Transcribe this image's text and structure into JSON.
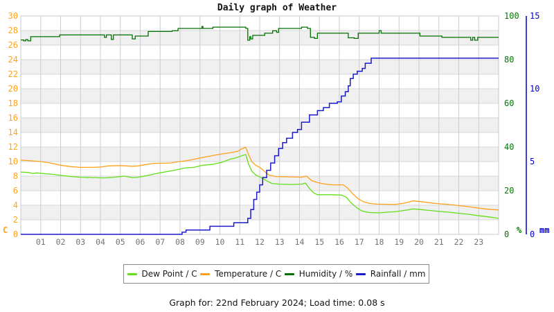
{
  "title": "Daily graph of Weather",
  "footer": "Graph for: 22nd February 2024; Load time: 0.08 s",
  "legend": {
    "items": [
      {
        "label": "Dew Point / C",
        "color": "#62df17"
      },
      {
        "label": "Temperature / C",
        "color": "#ffa019"
      },
      {
        "label": "Humidity / %",
        "color": "#006f00"
      },
      {
        "label": "Rainfall / mm",
        "color": "#1a1acd"
      }
    ]
  },
  "chart_data": {
    "type": "line",
    "title": "Daily graph of Weather",
    "background_bands": {
      "color": "#f0f0f0",
      "value_ranges": [
        [
          2,
          4
        ],
        [
          6,
          8
        ],
        [
          10,
          12
        ],
        [
          14,
          16
        ],
        [
          18,
          20
        ],
        [
          22,
          24
        ],
        [
          26,
          28
        ]
      ]
    },
    "grid": {
      "vertical_color": "#cccccc",
      "horizontal_color": "#d6d6d6",
      "border_color": "#c8c8c8"
    },
    "axes": {
      "left": {
        "unit": "C",
        "color": "#ffa21c",
        "min": 0,
        "max": 30,
        "step": 2,
        "ticks": [
          0,
          2,
          4,
          6,
          8,
          10,
          12,
          14,
          16,
          18,
          20,
          22,
          24,
          26,
          28,
          30
        ]
      },
      "right_pct": {
        "unit": "%",
        "color": "#007700",
        "min": 0,
        "max": 100,
        "step": 20,
        "ticks": [
          0,
          20,
          40,
          60,
          80,
          100
        ]
      },
      "right_mm": {
        "unit": "mm",
        "color": "#0000cc",
        "min": 0,
        "max": 15,
        "step": 5,
        "ticks": [
          0,
          5,
          10,
          15
        ]
      },
      "x": {
        "color": "#737373",
        "min_hour": 0,
        "max_hour": 24,
        "tick_labels": [
          "01",
          "02",
          "03",
          "04",
          "05",
          "06",
          "07",
          "08",
          "09",
          "10",
          "11",
          "12",
          "13",
          "14",
          "15",
          "16",
          "17",
          "18",
          "19",
          "20",
          "21",
          "22",
          "23"
        ]
      }
    },
    "series": [
      {
        "name": "Dew Point / C",
        "axis": "left",
        "color": "#62df17",
        "width": 1.3,
        "interp": "linear",
        "points": [
          [
            0,
            8.55
          ],
          [
            0.4,
            8.5
          ],
          [
            0.6,
            8.35
          ],
          [
            0.8,
            8.45
          ],
          [
            1.1,
            8.35
          ],
          [
            1.6,
            8.25
          ],
          [
            2,
            8.1
          ],
          [
            2.5,
            7.95
          ],
          [
            3,
            7.85
          ],
          [
            3.6,
            7.8
          ],
          [
            4.2,
            7.75
          ],
          [
            4.7,
            7.85
          ],
          [
            5.2,
            8.0
          ],
          [
            5.6,
            7.8
          ],
          [
            5.9,
            7.85
          ],
          [
            6.4,
            8.1
          ],
          [
            6.9,
            8.4
          ],
          [
            7.3,
            8.6
          ],
          [
            7.8,
            8.85
          ],
          [
            8.2,
            9.1
          ],
          [
            8.7,
            9.2
          ],
          [
            9.15,
            9.5
          ],
          [
            9.6,
            9.6
          ],
          [
            10.1,
            9.9
          ],
          [
            10.5,
            10.3
          ],
          [
            10.8,
            10.5
          ],
          [
            11.1,
            10.8
          ],
          [
            11.3,
            10.95
          ],
          [
            11.45,
            9.6
          ],
          [
            11.6,
            8.7
          ],
          [
            11.8,
            8.15
          ],
          [
            12.1,
            7.75
          ],
          [
            12.35,
            7.35
          ],
          [
            12.6,
            7.0
          ],
          [
            13,
            6.9
          ],
          [
            13.6,
            6.85
          ],
          [
            14.1,
            6.9
          ],
          [
            14.3,
            7.05
          ],
          [
            14.5,
            6.3
          ],
          [
            14.7,
            5.7
          ],
          [
            14.9,
            5.45
          ],
          [
            15.6,
            5.45
          ],
          [
            16.1,
            5.4
          ],
          [
            16.35,
            5.1
          ],
          [
            16.6,
            4.3
          ],
          [
            16.9,
            3.6
          ],
          [
            17.15,
            3.2
          ],
          [
            17.5,
            3.0
          ],
          [
            18,
            2.95
          ],
          [
            18.4,
            3.05
          ],
          [
            18.8,
            3.1
          ],
          [
            19.3,
            3.3
          ],
          [
            19.7,
            3.5
          ],
          [
            20.1,
            3.4
          ],
          [
            20.5,
            3.3
          ],
          [
            21,
            3.15
          ],
          [
            21.5,
            3.05
          ],
          [
            22,
            2.9
          ],
          [
            22.5,
            2.75
          ],
          [
            23,
            2.55
          ],
          [
            23.5,
            2.4
          ],
          [
            24,
            2.2
          ]
        ]
      },
      {
        "name": "Temperature / C",
        "axis": "left",
        "color": "#ffa019",
        "width": 1.3,
        "interp": "linear",
        "points": [
          [
            0,
            10.2
          ],
          [
            0.5,
            10.1
          ],
          [
            1,
            10.0
          ],
          [
            1.5,
            9.8
          ],
          [
            2,
            9.5
          ],
          [
            2.5,
            9.3
          ],
          [
            3,
            9.2
          ],
          [
            3.6,
            9.2
          ],
          [
            4,
            9.25
          ],
          [
            4.4,
            9.4
          ],
          [
            5,
            9.45
          ],
          [
            5.6,
            9.35
          ],
          [
            5.9,
            9.4
          ],
          [
            6.3,
            9.6
          ],
          [
            6.7,
            9.75
          ],
          [
            7.5,
            9.8
          ],
          [
            8,
            10.0
          ],
          [
            8.3,
            10.1
          ],
          [
            8.7,
            10.3
          ],
          [
            9,
            10.5
          ],
          [
            9.5,
            10.75
          ],
          [
            10,
            11.0
          ],
          [
            10.5,
            11.2
          ],
          [
            10.9,
            11.4
          ],
          [
            11.1,
            11.75
          ],
          [
            11.3,
            11.95
          ],
          [
            11.45,
            10.9
          ],
          [
            11.6,
            10.0
          ],
          [
            11.8,
            9.5
          ],
          [
            12,
            9.2
          ],
          [
            12.1,
            9.0
          ],
          [
            12.3,
            8.5
          ],
          [
            12.5,
            8.1
          ],
          [
            12.8,
            7.95
          ],
          [
            13.5,
            7.9
          ],
          [
            14.1,
            7.85
          ],
          [
            14.35,
            8.0
          ],
          [
            14.6,
            7.4
          ],
          [
            14.9,
            7.1
          ],
          [
            15.3,
            6.9
          ],
          [
            15.7,
            6.8
          ],
          [
            16.2,
            6.8
          ],
          [
            16.4,
            6.4
          ],
          [
            16.7,
            5.5
          ],
          [
            16.95,
            4.9
          ],
          [
            17.2,
            4.5
          ],
          [
            17.5,
            4.25
          ],
          [
            17.9,
            4.15
          ],
          [
            18.8,
            4.1
          ],
          [
            19.3,
            4.3
          ],
          [
            19.7,
            4.6
          ],
          [
            20.1,
            4.5
          ],
          [
            20.5,
            4.35
          ],
          [
            21,
            4.2
          ],
          [
            21.5,
            4.1
          ],
          [
            22,
            3.95
          ],
          [
            22.5,
            3.8
          ],
          [
            23,
            3.6
          ],
          [
            23.5,
            3.45
          ],
          [
            24,
            3.35
          ]
        ]
      },
      {
        "name": "Humidity / %",
        "axis": "right_pct",
        "color": "#006f00",
        "width": 1.3,
        "interp": "step",
        "points": [
          [
            0,
            89.0
          ],
          [
            0.15,
            88.6
          ],
          [
            0.25,
            89.2
          ],
          [
            0.35,
            88.6
          ],
          [
            0.5,
            90.5
          ],
          [
            1.85,
            90.5
          ],
          [
            1.95,
            91.3
          ],
          [
            4.15,
            91.3
          ],
          [
            4.2,
            90.2
          ],
          [
            4.3,
            91.3
          ],
          [
            4.55,
            89.2
          ],
          [
            4.65,
            91.3
          ],
          [
            5.5,
            91.3
          ],
          [
            5.6,
            89.5
          ],
          [
            5.75,
            90.8
          ],
          [
            6.3,
            90.8
          ],
          [
            6.4,
            92.9
          ],
          [
            7.6,
            93.2
          ],
          [
            7.9,
            94.3
          ],
          [
            9.05,
            94.3
          ],
          [
            9.1,
            95.2
          ],
          [
            9.15,
            94.3
          ],
          [
            9.55,
            94.3
          ],
          [
            9.65,
            94.9
          ],
          [
            11.25,
            94.9
          ],
          [
            11.3,
            94.3
          ],
          [
            11.4,
            88.9
          ],
          [
            11.5,
            90.5
          ],
          [
            11.55,
            89.5
          ],
          [
            11.65,
            91.1
          ],
          [
            12.15,
            91.1
          ],
          [
            12.25,
            92.1
          ],
          [
            12.55,
            92.1
          ],
          [
            12.65,
            93.2
          ],
          [
            12.85,
            92.5
          ],
          [
            12.95,
            94.3
          ],
          [
            13.85,
            94.3
          ],
          [
            14.1,
            94.9
          ],
          [
            14.4,
            94.3
          ],
          [
            14.55,
            90.2
          ],
          [
            14.75,
            89.7
          ],
          [
            14.9,
            92.1
          ],
          [
            16.3,
            92.1
          ],
          [
            16.45,
            90.0
          ],
          [
            16.75,
            89.7
          ],
          [
            16.95,
            92.1
          ],
          [
            17.95,
            92.1
          ],
          [
            18.0,
            93.3
          ],
          [
            18.1,
            92.1
          ],
          [
            19.95,
            92.1
          ],
          [
            20.05,
            90.8
          ],
          [
            21.05,
            90.8
          ],
          [
            21.15,
            90.2
          ],
          [
            22.5,
            90.2
          ],
          [
            22.6,
            88.9
          ],
          [
            22.7,
            90.2
          ],
          [
            22.8,
            88.9
          ],
          [
            22.95,
            90.2
          ],
          [
            24,
            90.2
          ]
        ]
      },
      {
        "name": "Rainfall / mm",
        "axis": "right_mm",
        "color": "#1a1acd",
        "width": 1.5,
        "interp": "step",
        "points": [
          [
            0,
            0
          ],
          [
            8.05,
            0
          ],
          [
            8.1,
            0.15
          ],
          [
            8.3,
            0.3
          ],
          [
            9.45,
            0.3
          ],
          [
            9.5,
            0.55
          ],
          [
            10.65,
            0.55
          ],
          [
            10.7,
            0.8
          ],
          [
            11.3,
            0.8
          ],
          [
            11.4,
            1.1
          ],
          [
            11.55,
            1.7
          ],
          [
            11.7,
            2.4
          ],
          [
            11.85,
            2.9
          ],
          [
            12.0,
            3.4
          ],
          [
            12.15,
            3.9
          ],
          [
            12.35,
            4.4
          ],
          [
            12.55,
            4.9
          ],
          [
            12.75,
            5.4
          ],
          [
            12.95,
            5.9
          ],
          [
            13.15,
            6.3
          ],
          [
            13.35,
            6.6
          ],
          [
            13.65,
            7.0
          ],
          [
            13.9,
            7.2
          ],
          [
            14.1,
            7.7
          ],
          [
            14.5,
            8.2
          ],
          [
            14.9,
            8.5
          ],
          [
            15.2,
            8.7
          ],
          [
            15.5,
            9.0
          ],
          [
            15.9,
            9.1
          ],
          [
            16.1,
            9.5
          ],
          [
            16.3,
            9.8
          ],
          [
            16.45,
            10.2
          ],
          [
            16.55,
            10.7
          ],
          [
            16.7,
            11.0
          ],
          [
            16.9,
            11.2
          ],
          [
            17.15,
            11.4
          ],
          [
            17.3,
            11.75
          ],
          [
            17.6,
            12.1
          ],
          [
            24,
            12.1
          ]
        ]
      }
    ]
  }
}
